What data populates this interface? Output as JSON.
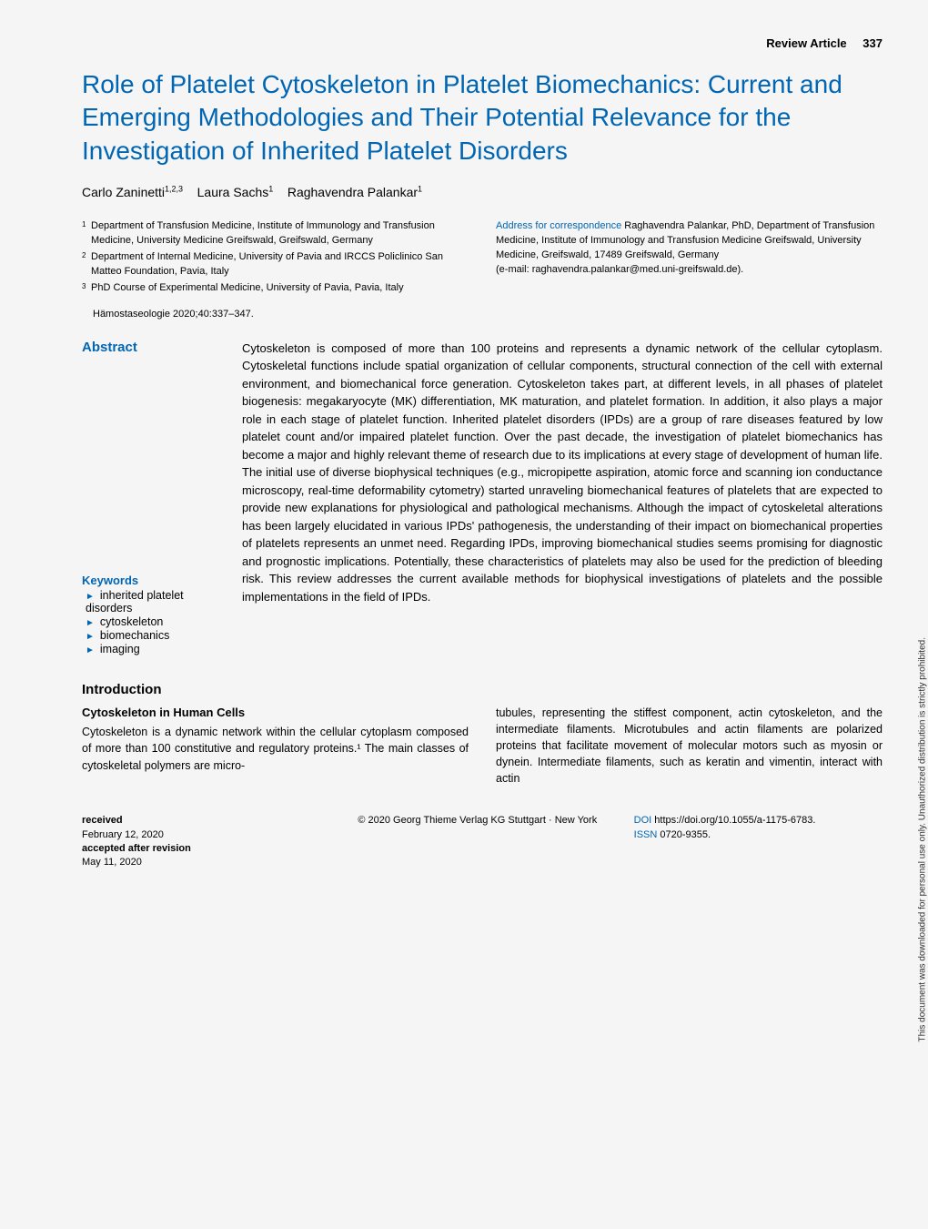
{
  "header": {
    "section": "Review Article",
    "pageNumber": "337"
  },
  "title": "Role of Platelet Cytoskeleton in Platelet Biomechanics: Current and Emerging Methodologies and Their Potential Relevance for the Investigation of Inherited Platelet Disorders",
  "authors": [
    {
      "name": "Carlo Zaninetti",
      "sup": "1,2,3"
    },
    {
      "name": "Laura Sachs",
      "sup": "1"
    },
    {
      "name": "Raghavendra Palankar",
      "sup": "1"
    }
  ],
  "affiliations": [
    {
      "num": "1",
      "text": "Department of Transfusion Medicine, Institute of Immunology and Transfusion Medicine, University Medicine Greifswald, Greifswald, Germany"
    },
    {
      "num": "2",
      "text": "Department of Internal Medicine, University of Pavia and IRCCS Policlinico San Matteo Foundation, Pavia, Italy"
    },
    {
      "num": "3",
      "text": "PhD Course of Experimental Medicine, University of Pavia, Pavia, Italy"
    }
  ],
  "correspondence": {
    "label": "Address for correspondence",
    "text": "Raghavendra Palankar, PhD, Department of Transfusion Medicine, Institute of Immunology and Transfusion Medicine Greifswald, University Medicine, Greifswald, 17489 Greifswald, Germany",
    "email": "(e-mail: raghavendra.palankar@med.uni-greifswald.de)."
  },
  "citation": "Hämostaseologie 2020;40:337–347.",
  "abstractLabel": "Abstract",
  "abstractText": "Cytoskeleton is composed of more than 100 proteins and represents a dynamic network of the cellular cytoplasm. Cytoskeletal functions include spatial organization of cellular components, structural connection of the cell with external environment, and biomechanical force generation. Cytoskeleton takes part, at different levels, in all phases of platelet biogenesis: megakaryocyte (MK) differentiation, MK maturation, and platelet formation. In addition, it also plays a major role in each stage of platelet function. Inherited platelet disorders (IPDs) are a group of rare diseases featured by low platelet count and/or impaired platelet function. Over the past decade, the investigation of platelet biomechanics has become a major and highly relevant theme of research due to its implications at every stage of development of human life. The initial use of diverse biophysical techniques (e.g., micropipette aspiration, atomic force and scanning ion conductance microscopy, real-time deformability cytometry) started unraveling biomechanical features of platelets that are expected to provide new explanations for physiological and pathological mechanisms. Although the impact of cytoskeletal alterations has been largely elucidated in various IPDs' pathogenesis, the understanding of their impact on biomechanical properties of platelets represents an unmet need. Regarding IPDs, improving biomechanical studies seems promising for diagnostic and prognostic implications. Potentially, these characteristics of platelets may also be used for the prediction of bleeding risk. This review addresses the current available methods for biophysical investigations of platelets and the possible implementations in the field of IPDs.",
  "keywordsLabel": "Keywords",
  "keywords": [
    "inherited platelet disorders",
    "cytoskeleton",
    "biomechanics",
    "imaging"
  ],
  "intro": {
    "heading": "Introduction",
    "subheading": "Cytoskeleton in Human Cells",
    "col1": "Cytoskeleton is a dynamic network within the cellular cytoplasm composed of more than 100 constitutive and regulatory proteins.¹ The main classes of cytoskeletal polymers are micro-",
    "col2": "tubules, representing the stiffest component, actin cytoskeleton, and the intermediate filaments. Microtubules and actin filaments are polarized proteins that facilitate movement of molecular motors such as myosin or dynein. Intermediate filaments, such as keratin and vimentin, interact with actin"
  },
  "footer": {
    "received": {
      "label": "received",
      "date": "February 12, 2020"
    },
    "accepted": {
      "label": "accepted after revision",
      "date": "May 11, 2020"
    },
    "copyright": "© 2020 Georg Thieme Verlag KG Stuttgart · New York",
    "doiLabel": "DOI",
    "doi": "https://doi.org/10.1055/a-1175-6783.",
    "issnLabel": "ISSN",
    "issn": "0720-9355."
  },
  "sideText": "This document was downloaded for personal use only. Unauthorized distribution is strictly prohibited."
}
